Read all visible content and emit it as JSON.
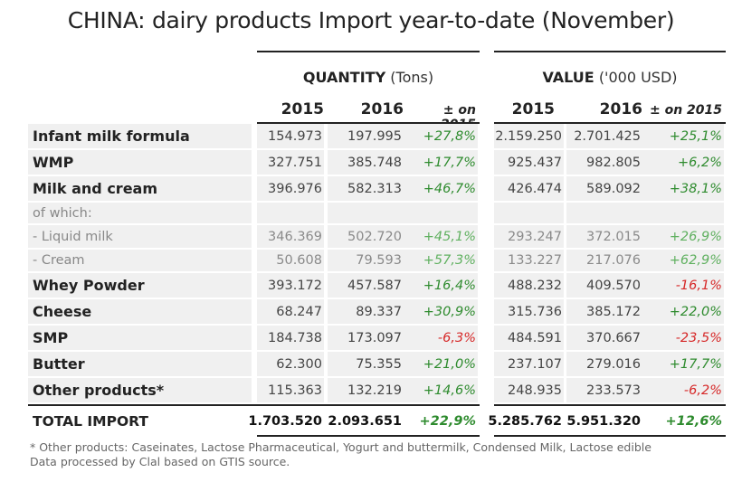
{
  "title": "CHINA: dairy products Import year-to-date (November)",
  "groups": {
    "quantity": {
      "label": "QUANTITY",
      "unit": "(Tons)"
    },
    "value": {
      "label": "VALUE",
      "unit": "('000 USD)"
    }
  },
  "columns": {
    "y2015": "2015",
    "y2016": "2016",
    "pct": "± on 2015"
  },
  "rows": [
    {
      "label": "Infant milk formula",
      "q2015": "154.973",
      "q2016": "197.995",
      "qpct": "+27,8%",
      "v2015": "2.159.250",
      "v2016": "2.701.425",
      "vpct": "+25,1%"
    },
    {
      "label": "WMP",
      "q2015": "327.751",
      "q2016": "385.748",
      "qpct": "+17,7%",
      "v2015": "925.437",
      "v2016": "982.805",
      "vpct": "+6,2%"
    },
    {
      "label": "Milk and cream",
      "q2015": "396.976",
      "q2016": "582.313",
      "qpct": "+46,7%",
      "v2015": "426.474",
      "v2016": "589.092",
      "vpct": "+38,1%"
    },
    {
      "label": "of which:",
      "q2015": "",
      "q2016": "",
      "qpct": "",
      "v2015": "",
      "v2016": "",
      "vpct": ""
    },
    {
      "label": "- Liquid milk",
      "q2015": "346.369",
      "q2016": "502.720",
      "qpct": "+45,1%",
      "v2015": "293.247",
      "v2016": "372.015",
      "vpct": "+26,9%"
    },
    {
      "label": "- Cream",
      "q2015": "50.608",
      "q2016": "79.593",
      "qpct": "+57,3%",
      "v2015": "133.227",
      "v2016": "217.076",
      "vpct": "+62,9%"
    },
    {
      "label": "Whey Powder",
      "q2015": "393.172",
      "q2016": "457.587",
      "qpct": "+16,4%",
      "v2015": "488.232",
      "v2016": "409.570",
      "vpct": "-16,1%"
    },
    {
      "label": "Cheese",
      "q2015": "68.247",
      "q2016": "89.337",
      "qpct": "+30,9%",
      "v2015": "315.736",
      "v2016": "385.172",
      "vpct": "+22,0%"
    },
    {
      "label": "SMP",
      "q2015": "184.738",
      "q2016": "173.097",
      "qpct": "-6,3%",
      "v2015": "484.591",
      "v2016": "370.667",
      "vpct": "-23,5%"
    },
    {
      "label": "Butter",
      "q2015": "62.300",
      "q2016": "75.355",
      "qpct": "+21,0%",
      "v2015": "237.107",
      "v2016": "279.016",
      "vpct": "+17,7%"
    },
    {
      "label": "Other products*",
      "q2015": "115.363",
      "q2016": "132.219",
      "qpct": "+14,6%",
      "v2015": "248.935",
      "v2016": "233.573",
      "vpct": "-6,2%"
    }
  ],
  "total": {
    "label": "TOTAL IMPORT",
    "q2015": "1.703.520",
    "q2016": "2.093.651",
    "qpct": "+22,9%",
    "v2015": "5.285.762",
    "v2016": "5.951.320",
    "vpct": "+12,6%"
  },
  "footnotes": {
    "note": "* Other products: Caseinates, Lactose Pharmaceutical, Yogurt and buttermilk, Condensed Milk, Lactose edible",
    "source": "Data processed by Clal based on GTIS source."
  }
}
